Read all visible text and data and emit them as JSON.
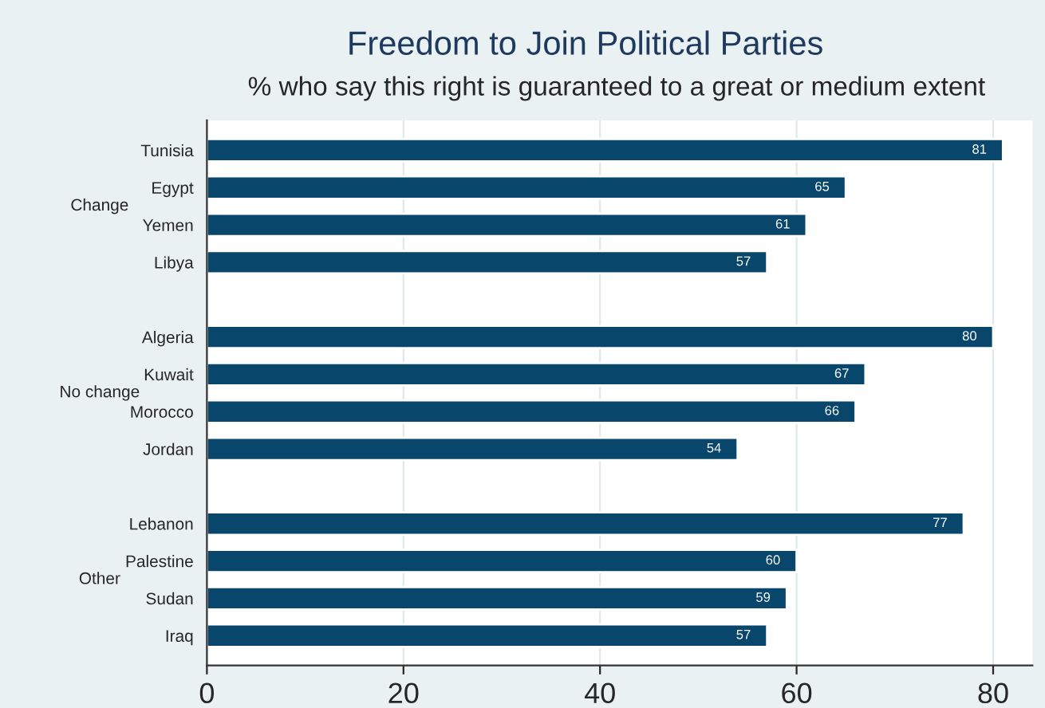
{
  "chart_data": {
    "type": "bar",
    "orientation": "horizontal",
    "title": "Freedom to Join Political Parties",
    "subtitle": "% who say this right is guaranteed to a great or medium extent",
    "categories": [
      "Tunisia",
      "Egypt",
      "Yemen",
      "Libya",
      null,
      "Algeria",
      "Kuwait",
      "Morocco",
      "Jordan",
      null,
      "Lebanon",
      "Palestine",
      "Sudan",
      "Iraq"
    ],
    "values": [
      81,
      65,
      61,
      57,
      null,
      80,
      67,
      66,
      54,
      null,
      77,
      60,
      59,
      57
    ],
    "color": "#08476b",
    "xlim": [
      0,
      84
    ],
    "xticks": [
      0,
      20,
      40,
      60,
      80
    ],
    "grid": "x",
    "data_labels": true,
    "annotations": [
      "Change",
      "No change",
      "Other"
    ]
  }
}
